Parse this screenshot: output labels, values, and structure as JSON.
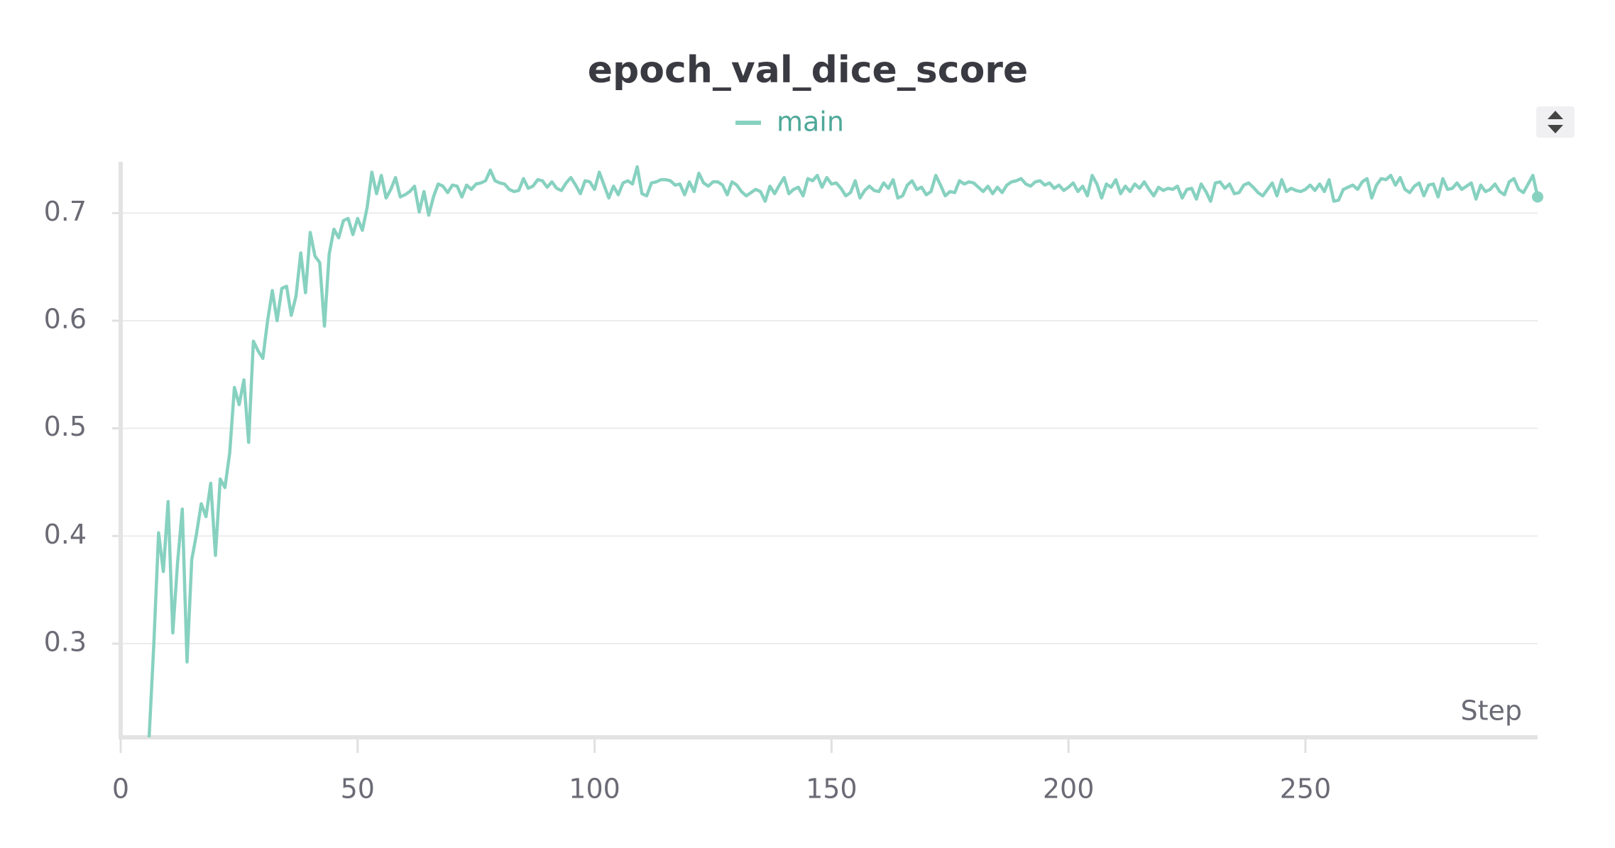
{
  "chart_data": {
    "type": "line",
    "title": "epoch_val_dice_score",
    "xlabel": "Step",
    "x": [
      6,
      7,
      8,
      9,
      10,
      11,
      12,
      13,
      14,
      15,
      16,
      17,
      18,
      19,
      20,
      21,
      22,
      23,
      24,
      25,
      26,
      27,
      28,
      29,
      30,
      31,
      32,
      33,
      34,
      35,
      36,
      37,
      38,
      39,
      40,
      41,
      42,
      43,
      44,
      45,
      46,
      47,
      48,
      49,
      50,
      51,
      52,
      53,
      54,
      55,
      56,
      57,
      58,
      59,
      60,
      61,
      62,
      63,
      64,
      65,
      66,
      67,
      68,
      69,
      70,
      71,
      72,
      73,
      74,
      75,
      76,
      77,
      78,
      79,
      80,
      81,
      82,
      83,
      84,
      85,
      86,
      87,
      88,
      89,
      90,
      91,
      92,
      93,
      94,
      95,
      96,
      97,
      98,
      99,
      100,
      101,
      102,
      103,
      104,
      105,
      106,
      107,
      108,
      109,
      110,
      111,
      112,
      113,
      114,
      115,
      116,
      117,
      118,
      119,
      120,
      121,
      122,
      123,
      124,
      125,
      126,
      127,
      128,
      129,
      130,
      131,
      132,
      133,
      134,
      135,
      136,
      137,
      138,
      139,
      140,
      141,
      142,
      143,
      144,
      145,
      146,
      147,
      148,
      149,
      150,
      151,
      152,
      153,
      154,
      155,
      156,
      157,
      158,
      159,
      160,
      161,
      162,
      163,
      164,
      165,
      166,
      167,
      168,
      169,
      170,
      171,
      172,
      173,
      174,
      175,
      176,
      177,
      178,
      179,
      180,
      181,
      182,
      183,
      184,
      185,
      186,
      187,
      188,
      189,
      190,
      191,
      192,
      193,
      194,
      195,
      196,
      197,
      198,
      199,
      200,
      201,
      202,
      203,
      204,
      205,
      206,
      207,
      208,
      209,
      210,
      211,
      212,
      213,
      214,
      215,
      216,
      217,
      218,
      219,
      220,
      221,
      222,
      223,
      224,
      225,
      226,
      227,
      228,
      229,
      230,
      231,
      232,
      233,
      234,
      235,
      236,
      237,
      238,
      239,
      240,
      241,
      242,
      243,
      244,
      245,
      246,
      247,
      248,
      249,
      250,
      251,
      252,
      253,
      254,
      255,
      256,
      257,
      258,
      259,
      260,
      261,
      262,
      263,
      264,
      265,
      266,
      267,
      268,
      269,
      270,
      271,
      272,
      273,
      274,
      275,
      276,
      277,
      278,
      279,
      280,
      281,
      282,
      283,
      284,
      285,
      286,
      287,
      288,
      289,
      290,
      291,
      292,
      293,
      294,
      295,
      296,
      297,
      298,
      299
    ],
    "series": [
      {
        "name": "main",
        "color": "#87d1c0",
        "values": [
          0.213,
          0.3,
          0.403,
          0.367,
          0.432,
          0.31,
          0.375,
          0.425,
          0.283,
          0.378,
          0.402,
          0.43,
          0.418,
          0.449,
          0.382,
          0.453,
          0.445,
          0.477,
          0.538,
          0.522,
          0.545,
          0.487,
          0.581,
          0.572,
          0.565,
          0.6,
          0.628,
          0.6,
          0.63,
          0.632,
          0.605,
          0.623,
          0.663,
          0.626,
          0.682,
          0.66,
          0.654,
          0.595,
          0.662,
          0.685,
          0.677,
          0.693,
          0.695,
          0.68,
          0.695,
          0.684,
          0.705,
          0.738,
          0.718,
          0.735,
          0.714,
          0.722,
          0.733,
          0.715,
          0.717,
          0.72,
          0.725,
          0.701,
          0.72,
          0.698,
          0.715,
          0.727,
          0.725,
          0.719,
          0.726,
          0.725,
          0.715,
          0.726,
          0.722,
          0.727,
          0.728,
          0.73,
          0.74,
          0.73,
          0.728,
          0.727,
          0.722,
          0.72,
          0.721,
          0.732,
          0.723,
          0.725,
          0.731,
          0.73,
          0.724,
          0.729,
          0.723,
          0.721,
          0.728,
          0.733,
          0.726,
          0.718,
          0.73,
          0.729,
          0.722,
          0.738,
          0.726,
          0.714,
          0.725,
          0.717,
          0.728,
          0.73,
          0.727,
          0.743,
          0.718,
          0.716,
          0.728,
          0.729,
          0.731,
          0.731,
          0.73,
          0.726,
          0.727,
          0.717,
          0.729,
          0.72,
          0.737,
          0.728,
          0.725,
          0.729,
          0.729,
          0.726,
          0.717,
          0.729,
          0.726,
          0.72,
          0.716,
          0.719,
          0.722,
          0.72,
          0.711,
          0.725,
          0.718,
          0.726,
          0.733,
          0.718,
          0.722,
          0.724,
          0.716,
          0.732,
          0.73,
          0.735,
          0.724,
          0.733,
          0.727,
          0.728,
          0.723,
          0.716,
          0.719,
          0.73,
          0.714,
          0.721,
          0.725,
          0.721,
          0.72,
          0.728,
          0.723,
          0.731,
          0.714,
          0.716,
          0.726,
          0.73,
          0.722,
          0.724,
          0.717,
          0.72,
          0.735,
          0.726,
          0.716,
          0.72,
          0.719,
          0.73,
          0.727,
          0.729,
          0.728,
          0.724,
          0.72,
          0.725,
          0.718,
          0.724,
          0.719,
          0.726,
          0.729,
          0.73,
          0.732,
          0.727,
          0.725,
          0.729,
          0.73,
          0.726,
          0.728,
          0.723,
          0.726,
          0.721,
          0.724,
          0.728,
          0.72,
          0.725,
          0.716,
          0.735,
          0.727,
          0.714,
          0.727,
          0.724,
          0.731,
          0.718,
          0.725,
          0.72,
          0.727,
          0.723,
          0.729,
          0.722,
          0.716,
          0.724,
          0.721,
          0.723,
          0.722,
          0.725,
          0.714,
          0.722,
          0.723,
          0.713,
          0.727,
          0.72,
          0.711,
          0.728,
          0.729,
          0.723,
          0.727,
          0.718,
          0.719,
          0.726,
          0.728,
          0.724,
          0.719,
          0.716,
          0.722,
          0.728,
          0.716,
          0.731,
          0.72,
          0.723,
          0.721,
          0.72,
          0.722,
          0.726,
          0.721,
          0.727,
          0.72,
          0.731,
          0.711,
          0.712,
          0.722,
          0.724,
          0.726,
          0.722,
          0.729,
          0.732,
          0.714,
          0.726,
          0.732,
          0.731,
          0.735,
          0.726,
          0.733,
          0.722,
          0.719,
          0.725,
          0.728,
          0.716,
          0.726,
          0.727,
          0.715,
          0.732,
          0.722,
          0.723,
          0.728,
          0.722,
          0.725,
          0.728,
          0.713,
          0.726,
          0.72,
          0.722,
          0.727,
          0.72,
          0.717,
          0.729,
          0.732,
          0.722,
          0.719,
          0.727,
          0.735,
          0.715
        ]
      }
    ],
    "xlim": [
      0,
      299
    ],
    "ylim": [
      0.213,
      0.745
    ],
    "xticks": [
      0,
      50,
      100,
      150,
      200,
      250
    ],
    "yticks": [
      0.3,
      0.4,
      0.5,
      0.6,
      0.7
    ],
    "grid": true
  }
}
